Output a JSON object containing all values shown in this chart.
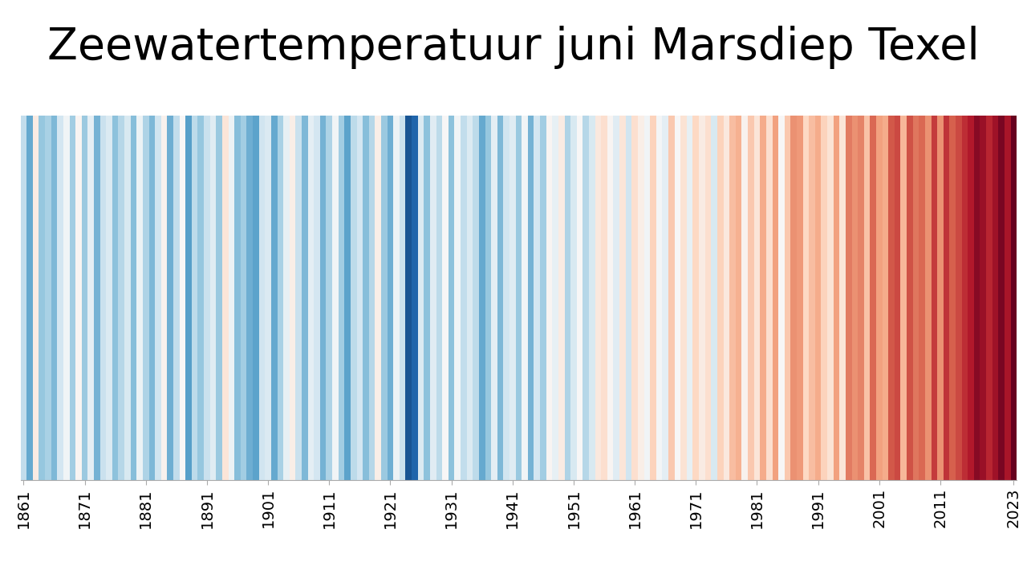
{
  "title": "Zeewatertemperatuur juni Marsdiep Texel",
  "start_year": 1861,
  "end_year": 2023,
  "tick_years": [
    1861,
    1871,
    1881,
    1891,
    1901,
    1911,
    1921,
    1931,
    1941,
    1951,
    1961,
    1971,
    1981,
    1991,
    2001,
    2011,
    2023
  ],
  "background_color": "#ffffff",
  "temperatures": [
    14.5,
    13.2,
    16.1,
    13.8,
    14.1,
    13.5,
    14.8,
    15.5,
    14.0,
    15.8,
    13.9,
    15.2,
    13.4,
    14.6,
    15.0,
    13.7,
    14.3,
    14.9,
    13.6,
    15.4,
    14.2,
    13.5,
    14.7,
    15.9,
    13.3,
    14.5,
    15.7,
    13.0,
    14.4,
    13.8,
    14.6,
    15.1,
    13.9,
    16.3,
    15.4,
    13.6,
    14.0,
    13.3,
    13.1,
    14.7,
    15.0,
    13.2,
    14.1,
    15.3,
    16.0,
    14.6,
    13.5,
    15.2,
    14.8,
    13.4,
    14.2,
    15.5,
    14.0,
    13.1,
    14.4,
    14.8,
    13.6,
    14.3,
    16.0,
    13.9,
    13.3,
    15.4,
    14.6,
    11.5,
    11.8,
    15.0,
    13.7,
    15.1,
    14.4,
    15.7,
    13.7,
    15.5,
    14.5,
    15.0,
    14.4,
    13.2,
    13.8,
    15.2,
    13.5,
    14.7,
    15.1,
    13.9,
    15.5,
    13.4,
    14.8,
    14.0,
    15.8,
    15.3,
    16.1,
    14.2,
    14.9,
    15.7,
    14.3,
    14.9,
    16.2,
    16.5,
    15.8,
    15.1,
    16.3,
    14.7,
    16.5,
    16.0,
    15.5,
    16.8,
    15.6,
    15.2,
    17.0,
    15.7,
    16.4,
    15.3,
    16.7,
    16.1,
    16.5,
    14.9,
    16.8,
    16.2,
    17.2,
    17.4,
    15.9,
    17.0,
    16.3,
    17.5,
    16.5,
    17.7,
    15.7,
    17.0,
    17.9,
    17.8,
    16.7,
    17.2,
    17.5,
    16.8,
    16.4,
    17.7,
    16.3,
    18.2,
    17.9,
    18.1,
    17.1,
    18.5,
    17.7,
    17.5,
    18.7,
    18.9,
    17.3,
    18.8,
    18.3,
    18.5,
    17.9,
    19.1,
    17.9,
    19.2,
    18.6,
    18.9,
    19.3,
    19.6,
    20.1,
    19.9,
    19.4,
    19.8,
    20.3,
    19.7,
    20.6
  ]
}
